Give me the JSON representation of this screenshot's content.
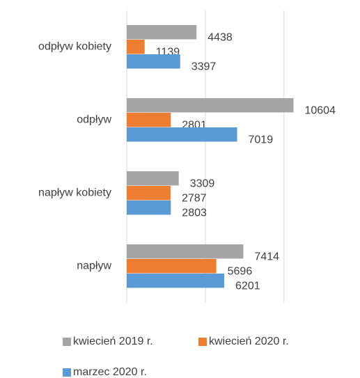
{
  "chart_data": {
    "type": "hbar",
    "categories": [
      "odpływ kobiety",
      "odpływ",
      "napływ kobiety",
      "napływ"
    ],
    "series": [
      {
        "name": "kwiecień 2019 r.",
        "color": "#a5a5a5",
        "values": [
          4438,
          10604,
          3309,
          7414
        ]
      },
      {
        "name": "kwiecień 2020 r.",
        "color": "#ed7d31",
        "values": [
          1139,
          2801,
          2787,
          5696
        ]
      },
      {
        "name": "marzec 2020 r.",
        "color": "#5b9bd5",
        "values": [
          3397,
          7019,
          2803,
          6201
        ]
      }
    ],
    "xlim": [
      0,
      12000
    ],
    "xticks": [
      0,
      5000,
      10000
    ],
    "grid": true
  }
}
